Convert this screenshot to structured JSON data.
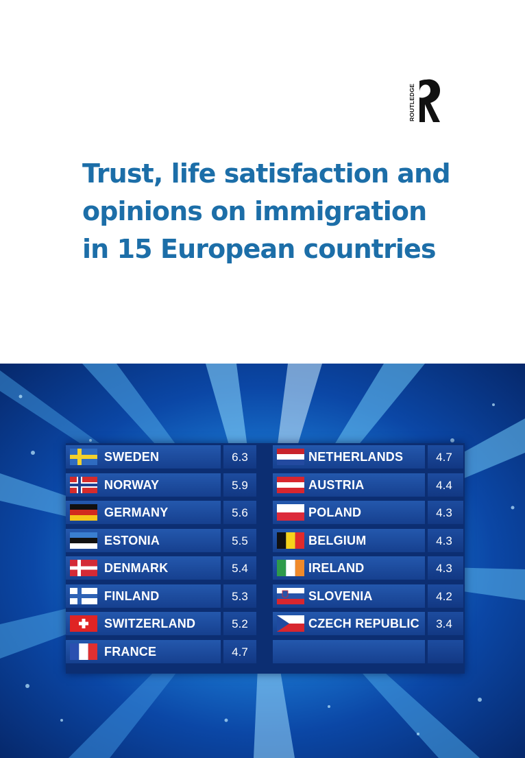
{
  "publisher": {
    "name": "ROUTLEDGE"
  },
  "book": {
    "title_lines": [
      "Trust, life satisfaction and",
      "opinions on immigration",
      "in 15 European countries"
    ]
  },
  "scoreboard": {
    "left": [
      {
        "country": "SWEDEN",
        "score": "6.3",
        "flag": "sweden-flag-icon"
      },
      {
        "country": "NORWAY",
        "score": "5.9",
        "flag": "norway-flag-icon"
      },
      {
        "country": "GERMANY",
        "score": "5.6",
        "flag": "germany-flag-icon"
      },
      {
        "country": "ESTONIA",
        "score": "5.5",
        "flag": "estonia-flag-icon"
      },
      {
        "country": "DENMARK",
        "score": "5.4",
        "flag": "denmark-flag-icon"
      },
      {
        "country": "FINLAND",
        "score": "5.3",
        "flag": "finland-flag-icon"
      },
      {
        "country": "SWITZERLAND",
        "score": "5.2",
        "flag": "switzerland-flag-icon"
      },
      {
        "country": "FRANCE",
        "score": "4.7",
        "flag": "france-flag-icon"
      }
    ],
    "right": [
      {
        "country": "NETHERLANDS",
        "score": "4.7",
        "flag": "netherlands-flag-icon"
      },
      {
        "country": "AUSTRIA",
        "score": "4.4",
        "flag": "austria-flag-icon"
      },
      {
        "country": "POLAND",
        "score": "4.3",
        "flag": "poland-flag-icon"
      },
      {
        "country": "BELGIUM",
        "score": "4.3",
        "flag": "belgium-flag-icon"
      },
      {
        "country": "IRELAND",
        "score": "4.3",
        "flag": "ireland-flag-icon"
      },
      {
        "country": "SLOVENIA",
        "score": "4.2",
        "flag": "slovenia-flag-icon"
      },
      {
        "country": "CZECH REPUBLIC",
        "score": "3.4",
        "flag": "czech-republic-flag-icon"
      }
    ]
  },
  "colors": {
    "title": "#1c6ea8",
    "board": "#0c2e72",
    "cell": "#1d4c9f"
  }
}
